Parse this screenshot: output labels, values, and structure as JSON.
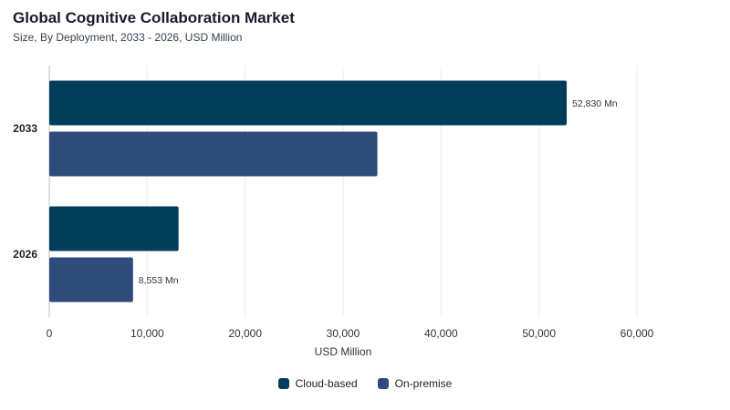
{
  "header": {
    "title": "Global Cognitive Collaboration Market",
    "subtitle": "Size, By Deployment, 2033 - 2026, USD Million"
  },
  "chart_data": {
    "type": "bar",
    "orientation": "horizontal",
    "categories": [
      "2033",
      "2026"
    ],
    "series": [
      {
        "name": "Cloud-based",
        "color": "#003d5b",
        "values": [
          52830,
          13200
        ]
      },
      {
        "name": "On-premise",
        "color": "#2f4b7c",
        "values": [
          33500,
          8553
        ]
      }
    ],
    "data_labels": [
      {
        "category": "2033",
        "series": "Cloud-based",
        "text": "52,830 Mn"
      },
      {
        "category": "2026",
        "series": "On-premise",
        "text": "8,553 Mn"
      }
    ],
    "xlabel": "USD Million",
    "ylabel": "",
    "xlim": [
      0,
      60000
    ],
    "xticks": [
      "0",
      "10,000",
      "20,000",
      "30,000",
      "40,000",
      "50,000",
      "60,000"
    ],
    "grid": true,
    "legend_position": "bottom"
  }
}
